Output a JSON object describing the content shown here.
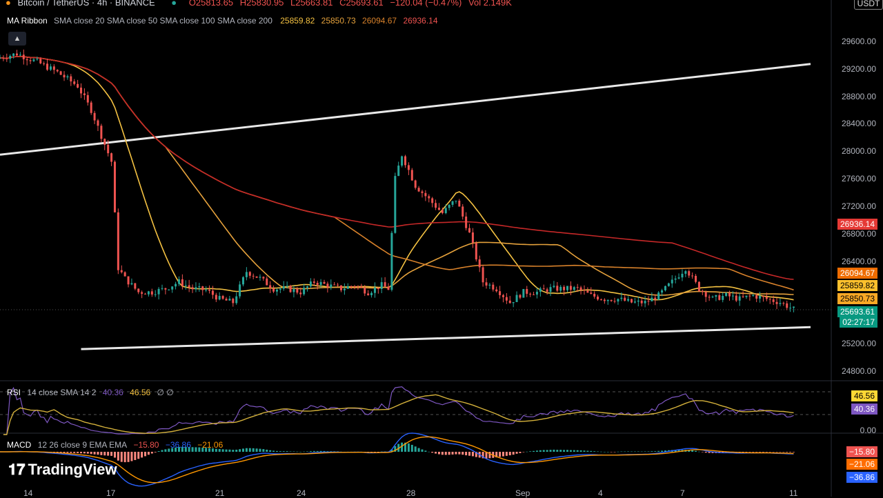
{
  "header": {
    "symbol": "Bitcoin / TetherUS · 4h · BINANCE",
    "open": "O25813.65",
    "high": "H25830.95",
    "low": "L25663.81",
    "close": "C25693.61",
    "change": "−120.04 (−0.47%)",
    "vol": "Vol 2.149K",
    "currency": "USDT"
  },
  "ma_legend": {
    "name": "MA Ribbon",
    "params": "SMA close 20 SMA close 50 SMA close 100 SMA close 200",
    "v20": "25859.82",
    "v50": "25850.73",
    "v100": "26094.67",
    "v200": "26936.14"
  },
  "price_axis": [
    "29600.00",
    "29200.00",
    "28800.00",
    "28400.00",
    "28000.00",
    "27600.00",
    "27200.00",
    "26800.00",
    "26400.00",
    "25200.00",
    "24800.00"
  ],
  "price_tags": {
    "ma200": "26936.14",
    "ma100": "26094.67",
    "ma20": "25859.82",
    "ma50": "25850.73",
    "last": "25693.61",
    "countdown": "02:27:17"
  },
  "rsi": {
    "label": "RSI",
    "params": "14 close SMA 14 2",
    "value": "40.36",
    "sma": "46.56",
    "extra": "∅ ∅",
    "tag_sma": "46.56",
    "tag_rsi": "40.36",
    "axis_zero": "0.00"
  },
  "macd": {
    "label": "MACD",
    "params": "12 26 close 9 EMA EMA",
    "hist": "−15.80",
    "macd": "−36.86",
    "signal": "−21.06",
    "tag_hist": "−15.80",
    "tag_signal": "−21.06",
    "tag_macd": "−36.86"
  },
  "logo": "TradingView",
  "x_axis": [
    "14",
    "17",
    "21",
    "24",
    "28",
    "Sep",
    "4",
    "7",
    "11"
  ],
  "colors": {
    "up": "#26a69a",
    "down": "#ef5350",
    "ma20": "#f5c242",
    "ma50": "#e6a23c",
    "ma100": "#d9822b",
    "ma200": "#c62828",
    "rsi": "#7e57c2",
    "rsi_sma": "#d4b13b",
    "macd": "#2962ff",
    "signal": "#ff9800"
  },
  "chart_data": {
    "type": "candlestick",
    "title": "Bitcoin / TetherUS · 4h · BINANCE",
    "ylim": [
      24700,
      29800
    ],
    "x_ticks": [
      "14",
      "17",
      "21",
      "24",
      "28",
      "Sep",
      "4",
      "7",
      "11"
    ],
    "price_path": [
      [
        0,
        29350
      ],
      [
        3,
        29420
      ],
      [
        6,
        29300
      ],
      [
        9,
        29150
      ],
      [
        12,
        28950
      ],
      [
        14,
        28600
      ],
      [
        16,
        28100
      ],
      [
        17,
        27850
      ],
      [
        18,
        26300
      ],
      [
        19,
        26150
      ],
      [
        21,
        25950
      ],
      [
        23,
        25950
      ],
      [
        25,
        26000
      ],
      [
        27,
        26100
      ],
      [
        29,
        26000
      ],
      [
        31,
        25980
      ],
      [
        33,
        25850
      ],
      [
        35,
        25800
      ],
      [
        37,
        26250
      ],
      [
        39,
        26150
      ],
      [
        41,
        26000
      ],
      [
        43,
        26000
      ],
      [
        45,
        25950
      ],
      [
        47,
        26100
      ],
      [
        49,
        26050
      ],
      [
        51,
        26000
      ],
      [
        53,
        26050
      ],
      [
        55,
        25950
      ],
      [
        57,
        26050
      ],
      [
        58,
        26000
      ],
      [
        59,
        27600
      ],
      [
        60,
        27950
      ],
      [
        62,
        27500
      ],
      [
        64,
        27300
      ],
      [
        66,
        27100
      ],
      [
        68,
        27300
      ],
      [
        70,
        26800
      ],
      [
        72,
        26100
      ],
      [
        74,
        26000
      ],
      [
        76,
        25800
      ],
      [
        78,
        25950
      ],
      [
        80,
        25950
      ],
      [
        82,
        26000
      ],
      [
        84,
        26000
      ],
      [
        86,
        26000
      ],
      [
        88,
        25900
      ],
      [
        90,
        25850
      ],
      [
        92,
        25850
      ],
      [
        94,
        25800
      ],
      [
        96,
        25800
      ],
      [
        98,
        25900
      ],
      [
        100,
        26100
      ],
      [
        102,
        26300
      ],
      [
        104,
        26000
      ],
      [
        106,
        25850
      ],
      [
        108,
        25900
      ],
      [
        110,
        25850
      ],
      [
        112,
        25900
      ],
      [
        114,
        25850
      ],
      [
        116,
        25800
      ],
      [
        118,
        25700
      ]
    ],
    "series": [
      {
        "name": "SMA close 20",
        "last": 25859.82
      },
      {
        "name": "SMA close 50",
        "last": 25850.73
      },
      {
        "name": "SMA close 100",
        "last": 26094.67
      },
      {
        "name": "SMA close 200",
        "last": 26936.14
      }
    ],
    "trendlines": [
      {
        "from": [
          0,
          27950
        ],
        "to": [
          120,
          29270
        ]
      },
      {
        "from": [
          12,
          25120
        ],
        "to": [
          120,
          25440
        ]
      }
    ]
  }
}
